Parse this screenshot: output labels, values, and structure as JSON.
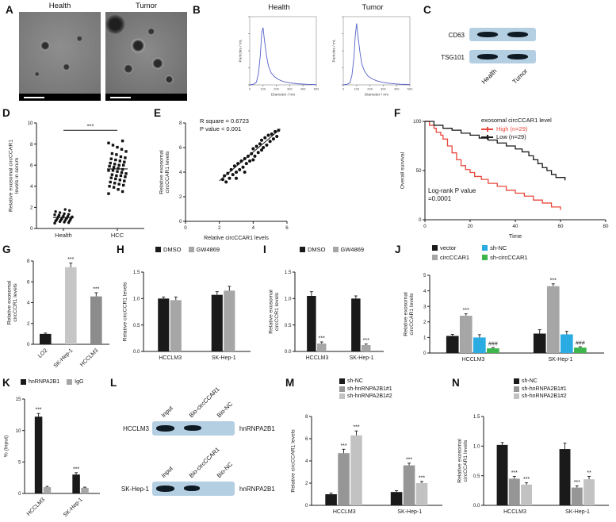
{
  "panels": {
    "A": {
      "label": "A",
      "titles": [
        "Health",
        "Tumor"
      ]
    },
    "B": {
      "label": "B",
      "titles": [
        "Health",
        "Tumor"
      ]
    },
    "C": {
      "label": "C",
      "proteins": [
        "CD63",
        "TSG101"
      ],
      "lanes": [
        "Health",
        "Tumor"
      ]
    },
    "D": {
      "label": "D"
    },
    "E": {
      "label": "E"
    },
    "F": {
      "label": "F"
    },
    "G": {
      "label": "G"
    },
    "H": {
      "label": "H"
    },
    "I": {
      "label": "I"
    },
    "J": {
      "label": "J"
    },
    "K": {
      "label": "K"
    },
    "L": {
      "label": "L",
      "groups": [
        {
          "cell": "HCCLM3",
          "lanes": [
            "Input",
            "Bio-circCCAR1",
            "Bio-NC"
          ],
          "protein": "hnRNPA2B1"
        },
        {
          "cell": "SK-Hep-1",
          "lanes": [
            "Input",
            "Bio-circCCAR1",
            "Bio-NC"
          ],
          "protein": "hnRNPA2B1"
        }
      ]
    },
    "M": {
      "label": "M"
    },
    "N": {
      "label": "N"
    }
  },
  "chart_data": [
    {
      "id": "B1",
      "type": "line",
      "title": "Health",
      "xlabel": "Diameter / nm",
      "ylabel": "Particles / mL",
      "xlim": [
        0,
        500
      ],
      "ylim": [
        0,
        50
      ],
      "xticks": [
        0,
        100,
        200,
        300,
        400,
        500
      ],
      "color": "#5560c8",
      "x": [
        0,
        30,
        50,
        65,
        80,
        90,
        100,
        110,
        125,
        140,
        160,
        185,
        215,
        250,
        300,
        360,
        430,
        500
      ],
      "y": [
        0,
        0.5,
        2,
        8,
        22,
        38,
        42,
        33,
        22,
        14,
        9,
        6,
        4,
        2.5,
        1.5,
        0.8,
        0.4,
        0.2
      ]
    },
    {
      "id": "B2",
      "type": "line",
      "title": "Tumor",
      "xlabel": "Diameter / nm",
      "ylabel": "Particles / mL",
      "xlim": [
        0,
        500
      ],
      "ylim": [
        0,
        50
      ],
      "xticks": [
        0,
        100,
        200,
        300,
        400,
        500
      ],
      "color": "#5560c8",
      "x": [
        0,
        30,
        50,
        65,
        80,
        90,
        100,
        110,
        125,
        140,
        160,
        185,
        215,
        250,
        300,
        360,
        430,
        500
      ],
      "y": [
        0,
        0.5,
        1.5,
        7,
        20,
        36,
        45,
        36,
        24,
        15,
        10,
        6.5,
        4.5,
        3,
        1.8,
        1,
        0.5,
        0.2
      ]
    },
    {
      "id": "D",
      "type": "scatter-cat",
      "ylabel_lines": [
        "Relative exosomal circCCAR1",
        "levels in serum"
      ],
      "categories": [
        "Health",
        "HCC"
      ],
      "ylim": [
        0,
        10
      ],
      "yticks": [
        0,
        2,
        4,
        6,
        8,
        10
      ],
      "sig": "***",
      "groups": [
        {
          "name": "Health",
          "marker": "circle",
          "values": [
            0.5,
            0.55,
            0.6,
            0.65,
            0.7,
            0.7,
            0.75,
            0.8,
            0.8,
            0.85,
            0.9,
            0.9,
            0.95,
            1.0,
            1.0,
            1.05,
            1.1,
            1.1,
            1.15,
            1.2,
            1.25,
            1.3,
            1.35,
            1.4,
            1.5,
            1.6,
            1.7,
            1.8
          ]
        },
        {
          "name": "HCC",
          "marker": "square",
          "values": [
            3.3,
            3.5,
            3.7,
            3.9,
            4.0,
            4.1,
            4.2,
            4.3,
            4.4,
            4.5,
            4.6,
            4.7,
            4.8,
            4.9,
            5.0,
            5.0,
            5.1,
            5.2,
            5.3,
            5.4,
            5.5,
            5.5,
            5.6,
            5.7,
            5.8,
            5.9,
            6.0,
            6.0,
            6.1,
            6.2,
            6.3,
            6.4,
            6.5,
            6.6,
            6.7,
            6.8,
            7.0,
            7.1,
            7.3,
            7.5,
            7.7,
            7.9,
            8.1,
            8.3
          ]
        }
      ]
    },
    {
      "id": "E",
      "type": "scatter-xy",
      "annotation": [
        "R square = 0.6723",
        "P value < 0.001"
      ],
      "xlabel": "Relative circCCAR1 levels",
      "ylabel_lines": [
        "Relative exosomal",
        "circCCAR1 levels"
      ],
      "xlim": [
        0,
        6
      ],
      "ylim": [
        0,
        8
      ],
      "xticks": [
        0,
        2,
        4,
        6
      ],
      "yticks": [
        0,
        2,
        4,
        6,
        8
      ],
      "line": [
        [
          2.0,
          3.3
        ],
        [
          5.6,
          7.5
        ]
      ],
      "points": [
        [
          2.2,
          3.4
        ],
        [
          2.3,
          3.7
        ],
        [
          2.4,
          3.2
        ],
        [
          2.5,
          3.9
        ],
        [
          2.6,
          3.5
        ],
        [
          2.7,
          4.2
        ],
        [
          2.8,
          3.8
        ],
        [
          2.9,
          4.5
        ],
        [
          3.0,
          4.0
        ],
        [
          3.0,
          3.5
        ],
        [
          3.1,
          4.7
        ],
        [
          3.2,
          4.2
        ],
        [
          3.3,
          4.9
        ],
        [
          3.4,
          4.4
        ],
        [
          3.5,
          5.1
        ],
        [
          3.5,
          4.0
        ],
        [
          3.6,
          4.7
        ],
        [
          3.7,
          5.3
        ],
        [
          3.8,
          4.9
        ],
        [
          3.9,
          5.5
        ],
        [
          4.0,
          5.0
        ],
        [
          4.0,
          5.9
        ],
        [
          4.1,
          5.3
        ],
        [
          4.2,
          6.1
        ],
        [
          4.3,
          5.6
        ],
        [
          4.4,
          6.3
        ],
        [
          4.5,
          5.8
        ],
        [
          4.5,
          6.6
        ],
        [
          4.6,
          6.0
        ],
        [
          4.7,
          6.8
        ],
        [
          4.8,
          6.2
        ],
        [
          4.9,
          7.0
        ],
        [
          5.0,
          6.5
        ],
        [
          5.1,
          7.1
        ],
        [
          5.2,
          6.7
        ],
        [
          5.3,
          7.3
        ],
        [
          5.4,
          6.9
        ],
        [
          5.5,
          7.4
        ]
      ]
    },
    {
      "id": "F",
      "type": "survival",
      "xlabel": "Time",
      "ylabel_lines": [
        "Overall survival"
      ],
      "xlim": [
        0,
        80
      ],
      "ylim": [
        0,
        100
      ],
      "xticks": [
        0,
        20,
        40,
        60,
        80
      ],
      "yticks": [
        0,
        50,
        100
      ],
      "legend_title": "exosomal circCCAR1 level",
      "annotation": [
        "Log-rank  P value",
        "=0.0001"
      ],
      "series": [
        {
          "name": "High (n=29)",
          "color": "#e8483d",
          "steps": [
            [
              0,
              100
            ],
            [
              2,
              96
            ],
            [
              4,
              93
            ],
            [
              5,
              89
            ],
            [
              7,
              86
            ],
            [
              8,
              82
            ],
            [
              10,
              75
            ],
            [
              12,
              68
            ],
            [
              14,
              61
            ],
            [
              16,
              55
            ],
            [
              18,
              51
            ],
            [
              20,
              48
            ],
            [
              22,
              44
            ],
            [
              25,
              41
            ],
            [
              28,
              37
            ],
            [
              32,
              34
            ],
            [
              36,
              30
            ],
            [
              40,
              27
            ],
            [
              44,
              24
            ],
            [
              48,
              20
            ],
            [
              52,
              17
            ],
            [
              56,
              13
            ],
            [
              60,
              10
            ]
          ]
        },
        {
          "name": "Low (n=29)",
          "color": "#1a1a1a",
          "steps": [
            [
              0,
              100
            ],
            [
              4,
              96
            ],
            [
              8,
              93
            ],
            [
              12,
              91
            ],
            [
              16,
              88
            ],
            [
              20,
              86
            ],
            [
              24,
              83
            ],
            [
              28,
              81
            ],
            [
              32,
              78
            ],
            [
              36,
              75
            ],
            [
              40,
              72
            ],
            [
              43,
              69
            ],
            [
              46,
              65
            ],
            [
              48,
              61
            ],
            [
              50,
              57
            ],
            [
              52,
              53
            ],
            [
              54,
              50
            ],
            [
              56,
              46
            ],
            [
              58,
              43
            ],
            [
              62,
              40
            ]
          ]
        }
      ]
    },
    {
      "id": "G",
      "type": "bar",
      "ylabel_lines": [
        "Relative exosomal",
        "circCCR1 levels"
      ],
      "categories": [
        "LO2",
        "SK-Hep-1",
        "HCCLM3"
      ],
      "rotate_labels": 45,
      "ylim": [
        0,
        8
      ],
      "yticks": [
        0,
        2,
        4,
        6,
        8
      ],
      "series": [
        {
          "name": "",
          "color": "#9c9c9c",
          "colors": [
            "#1a1a1a",
            "#c6c6c6",
            "#8c8c8c"
          ],
          "values": [
            1.0,
            7.4,
            4.6
          ],
          "errors": [
            0.08,
            0.4,
            0.35
          ],
          "sig": [
            "",
            "***",
            "***"
          ]
        }
      ]
    },
    {
      "id": "H",
      "type": "bar",
      "ylabel_lines": [
        "Relative circCCR1 levels"
      ],
      "categories": [
        "HCCLM3",
        "SK-Hep-1"
      ],
      "ylim": [
        0,
        1.5
      ],
      "yticks": [
        0,
        0.5,
        1.0,
        1.5
      ],
      "ytick_labels": [
        "0.0",
        "0.5",
        "1.0",
        "1.5"
      ],
      "series": [
        {
          "name": "DMSO",
          "color": "#1a1a1a",
          "values": [
            1.0,
            1.07
          ],
          "errors": [
            0.03,
            0.06
          ]
        },
        {
          "name": "GW4869",
          "color": "#a6a6a6",
          "values": [
            0.97,
            1.15
          ],
          "errors": [
            0.06,
            0.08
          ]
        }
      ]
    },
    {
      "id": "I",
      "type": "bar",
      "ylabel_lines": [
        "Relative exosomal",
        "circCCR1 levels"
      ],
      "categories": [
        "HCCLM3",
        "SK-Hep-1"
      ],
      "ylim": [
        0,
        1.5
      ],
      "yticks": [
        0,
        0.5,
        1.0,
        1.5
      ],
      "ytick_labels": [
        "0.0",
        "0.5",
        "1.0",
        "1.5"
      ],
      "series": [
        {
          "name": "DMSO",
          "color": "#1a1a1a",
          "values": [
            1.05,
            1.0
          ],
          "errors": [
            0.08,
            0.05
          ]
        },
        {
          "name": "GW4869",
          "color": "#a6a6a6",
          "values": [
            0.15,
            0.12
          ],
          "errors": [
            0.03,
            0.02
          ],
          "sig": [
            "***",
            "***"
          ]
        }
      ]
    },
    {
      "id": "J",
      "type": "bar",
      "ylabel_lines": [
        "Relative exosomal",
        "circCCAR1 levels"
      ],
      "categories": [
        "HCCLM3",
        "SK-Hep-1"
      ],
      "ylim": [
        0,
        5
      ],
      "yticks": [
        0,
        1,
        2,
        3,
        4,
        5
      ],
      "series": [
        {
          "name": "vector",
          "color": "#1a1a1a",
          "values": [
            1.1,
            1.25
          ],
          "errors": [
            0.1,
            0.25
          ]
        },
        {
          "name": "circCCAR1",
          "color": "#a6a6a6",
          "values": [
            2.4,
            4.3
          ],
          "errors": [
            0.12,
            0.15
          ],
          "sig": [
            "***",
            "***"
          ]
        },
        {
          "name": "sh-NC",
          "color": "#2aabe2",
          "values": [
            1.0,
            1.2
          ],
          "errors": [
            0.18,
            0.2
          ]
        },
        {
          "name": "sh-circCCAR1",
          "color": "#3cb54a",
          "values": [
            0.3,
            0.35
          ],
          "errors": [
            0.05,
            0.06
          ],
          "sig": [
            "###",
            "###"
          ]
        }
      ]
    },
    {
      "id": "K",
      "type": "bar",
      "ylabel_lines": [
        "%  (Input)"
      ],
      "categories": [
        "HCCLM3",
        "SK-Hep-1"
      ],
      "rotate_labels": 45,
      "ylim": [
        0,
        15
      ],
      "yticks": [
        0,
        5,
        10,
        15
      ],
      "series": [
        {
          "name": "hnRNPA2B1",
          "color": "#1a1a1a",
          "values": [
            12.2,
            3.0
          ],
          "errors": [
            0.5,
            0.3
          ],
          "sig": [
            "***",
            "***"
          ]
        },
        {
          "name": "IgG",
          "color": "#a6a6a6",
          "values": [
            1.0,
            0.9
          ],
          "errors": [
            0.12,
            0.1
          ]
        }
      ]
    },
    {
      "id": "M",
      "type": "bar",
      "ylabel_lines": [
        "Relative circCCAR1 levels"
      ],
      "categories": [
        "HCCLM3",
        "SK-Hep-1"
      ],
      "ylim": [
        0,
        8
      ],
      "yticks": [
        0,
        2,
        4,
        6,
        8
      ],
      "series": [
        {
          "name": "sh-NC",
          "color": "#1a1a1a",
          "values": [
            1.0,
            1.2
          ],
          "errors": [
            0.1,
            0.12
          ]
        },
        {
          "name": "sh-hnRNPA2B1#1",
          "color": "#969696",
          "values": [
            4.7,
            3.6
          ],
          "errors": [
            0.35,
            0.2
          ],
          "sig": [
            "***",
            "***"
          ]
        },
        {
          "name": "sh-hnRNPA2B1#2",
          "color": "#c2c2c2",
          "values": [
            6.3,
            2.0
          ],
          "errors": [
            0.4,
            0.15
          ],
          "sig": [
            "***",
            "***"
          ]
        }
      ]
    },
    {
      "id": "N",
      "type": "bar",
      "ylabel_lines": [
        "Relative exosomal",
        "circCCAR1 levels"
      ],
      "categories": [
        "HCCLM3",
        "SK-Hep-1"
      ],
      "ylim": [
        0,
        1.5
      ],
      "yticks": [
        0,
        0.5,
        1.0,
        1.5
      ],
      "ytick_labels": [
        "0.0",
        "0.5",
        "1.0",
        "1.5"
      ],
      "series": [
        {
          "name": "sh-NC",
          "color": "#1a1a1a",
          "values": [
            1.02,
            0.95
          ],
          "errors": [
            0.04,
            0.1
          ]
        },
        {
          "name": "sh-hnRNPA2B1#1",
          "color": "#969696",
          "values": [
            0.45,
            0.3
          ],
          "errors": [
            0.04,
            0.03
          ],
          "sig": [
            "***",
            "***"
          ]
        },
        {
          "name": "sh-hnRNPA2B1#2",
          "color": "#c2c2c2",
          "values": [
            0.35,
            0.44
          ],
          "errors": [
            0.03,
            0.05
          ],
          "sig": [
            "***",
            "**"
          ]
        }
      ]
    }
  ]
}
